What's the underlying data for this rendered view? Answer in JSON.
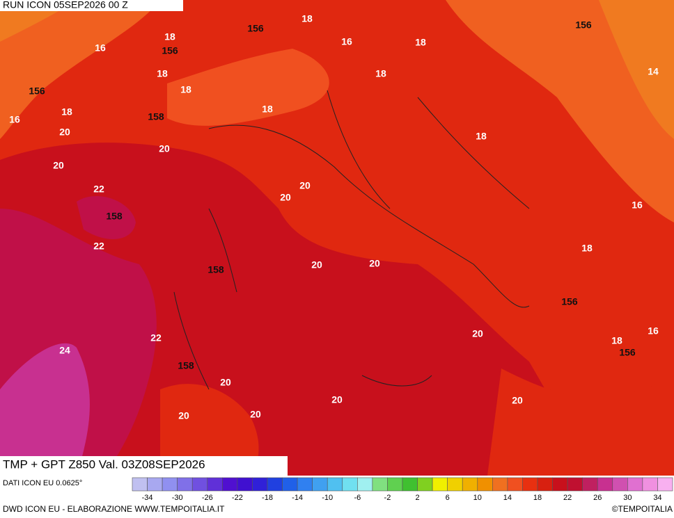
{
  "header": {
    "run": "RUN ICON 05SEP2026 00 Z",
    "title": "TMP + GPT Z850 Val. 03Z08SEP2026"
  },
  "map": {
    "labels": [
      "156",
      "18",
      "16",
      "18",
      "156",
      "18",
      "156",
      "16",
      "18",
      "18",
      "18",
      "14",
      "156",
      "18",
      "16",
      "158",
      "18",
      "20",
      "18",
      "20",
      "20",
      "20",
      "20",
      "22",
      "158",
      "16",
      "22",
      "18",
      "20",
      "20",
      "158",
      "156",
      "20",
      "22",
      "18",
      "16",
      "156",
      "24",
      "158",
      "20",
      "20",
      "20",
      "20",
      "20"
    ]
  },
  "legend": {
    "ticks": [
      -34,
      -30,
      -26,
      -22,
      -18,
      -14,
      -10,
      -6,
      -2,
      2,
      6,
      10,
      14,
      18,
      22,
      26,
      30,
      34
    ],
    "colors": [
      "#c0c0f0",
      "#a8a8f0",
      "#9090f0",
      "#8070e8",
      "#7050e0",
      "#6030d8",
      "#5010d0",
      "#4010d0",
      "#3020d8",
      "#2040e0",
      "#2060e8",
      "#3080f0",
      "#40a0f0",
      "#50c0f0",
      "#70e0f0",
      "#a0f0f0",
      "#80e080",
      "#60d050",
      "#40c030",
      "#80d020",
      "#f0f000",
      "#f0d000",
      "#f0b000",
      "#f09000",
      "#f07020",
      "#f05020",
      "#e83010",
      "#d82010",
      "#c8101c",
      "#c01030",
      "#c02060",
      "#c83090",
      "#d050b0",
      "#e070d0",
      "#f090e0",
      "#f8b0f0"
    ]
  },
  "footer": {
    "source": "DATI ICON EU 0.0625°",
    "credit": "DWD ICON EU - ELABORAZIONE WWW.TEMPOITALIA.IT",
    "copyright": "©TEMPOITALIA"
  }
}
